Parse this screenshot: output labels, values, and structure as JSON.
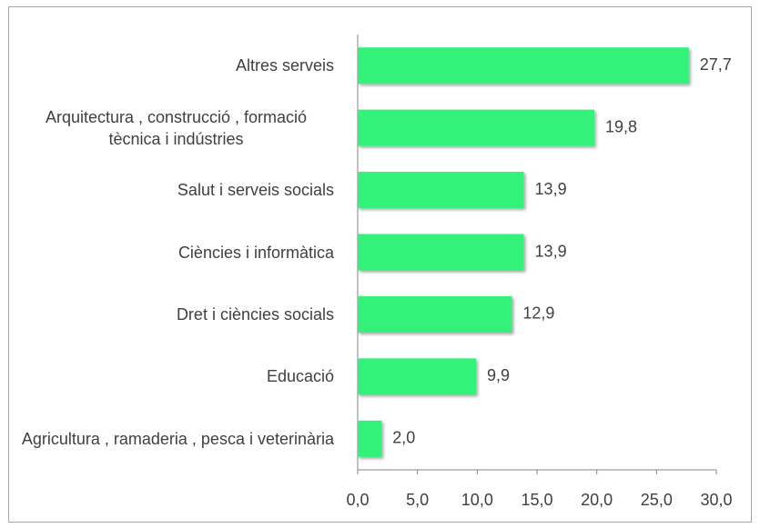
{
  "chart_data": {
    "type": "bar",
    "orientation": "horizontal",
    "categories": [
      "Altres serveis",
      "Arquitectura , construcció , formació tècnica i indústries",
      "Salut i serveis socials",
      "Ciències i informàtica",
      "Dret i ciències socials",
      "Educació",
      "Agricultura , ramaderia , pesca i veterinària"
    ],
    "values": [
      27.7,
      19.8,
      13.9,
      13.9,
      12.9,
      9.9,
      2.0
    ],
    "value_labels": [
      "27,7",
      "19,8",
      "13,9",
      "13,9",
      "12,9",
      "9,9",
      "2,0"
    ],
    "color": "#33f27a",
    "xlim": [
      0,
      30
    ],
    "xticks": [
      {
        "value": 0,
        "label": "0,0"
      },
      {
        "value": 5,
        "label": "5,0"
      },
      {
        "value": 10,
        "label": "10,0"
      },
      {
        "value": 15,
        "label": "15,0"
      },
      {
        "value": 20,
        "label": "20,0"
      },
      {
        "value": 25,
        "label": "25,0"
      },
      {
        "value": 30,
        "label": "30,0"
      }
    ],
    "grid": false
  }
}
